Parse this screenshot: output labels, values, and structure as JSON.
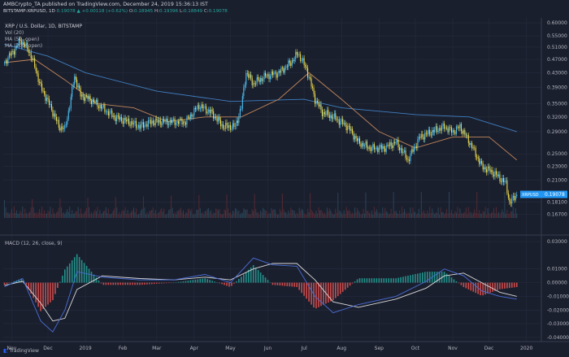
{
  "header": {
    "publisher_line": "AMBCrypto_TA published on TradingView.com, December 24, 2019 15:36:13 IST",
    "ticker_line": [
      "BITSTAMP:XRPUSD, 1D",
      "0.19078",
      "▲ +0.00118 (+0.62%)",
      "O:",
      "0.18945",
      "H:",
      "0.19396",
      "L:",
      "0.18849",
      "C:",
      "0.19078"
    ]
  },
  "legend": {
    "title": "XRP / U.S. Dollar, 1D, BITSTAMP",
    "vol": "Vol (20)",
    "ma50": "MA (50, open)",
    "ma200": "MA (200, open)",
    "macd": "MACD (12, 26, close, 9)"
  },
  "price_badge": "XRPUSD   0.19078",
  "footer": {
    "brand": "TradingView"
  },
  "colors": {
    "background": "#1a1f2e",
    "candle_up": "#4fc3f7",
    "candle_down": "#f4e04d",
    "ma50": "#c0865a",
    "ma200": "#3f7fbf",
    "macd_line": "#4a6ed8",
    "signal_line": "#d9d9d9",
    "hist_pos": "#26a69a",
    "hist_neg": "#ef5350"
  },
  "chart_data": [
    {
      "type": "line",
      "title": "XRP / U.S. Dollar, 1D, BITSTAMP",
      "log_scale": true,
      "ylim": [
        0.163,
        0.62
      ],
      "xlim": [
        "2018-10-25",
        "2020-01-12"
      ],
      "x_ticks": [
        "Nov",
        "Dec",
        "2019",
        "Feb",
        "Mar",
        "Apr",
        "May",
        "Jun",
        "Jul",
        "Aug",
        "Sep",
        "Oct",
        "Nov",
        "Dec",
        "2020"
      ],
      "y_ticks": [
        "0.60000",
        "0.55000",
        "0.51000",
        "0.47000",
        "0.43000",
        "0.39000",
        "0.35000",
        "0.32000",
        "0.29000",
        "0.25000",
        "0.23000",
        "0.21000",
        "0.18100",
        "0.16700"
      ],
      "grid": true,
      "series": [
        {
          "name": "XRPUSD",
          "x": [
            "2018-10-26",
            "2018-11-05",
            "2018-11-08",
            "2018-11-15",
            "2018-11-20",
            "2018-11-25",
            "2018-12-01",
            "2018-12-10",
            "2018-12-15",
            "2018-12-19",
            "2018-12-23",
            "2018-12-28",
            "2019-01-05",
            "2019-01-15",
            "2019-01-25",
            "2019-02-05",
            "2019-02-15",
            "2019-02-25",
            "2019-03-05",
            "2019-03-15",
            "2019-03-25",
            "2019-04-05",
            "2019-04-15",
            "2019-04-25",
            "2019-05-05",
            "2019-05-10",
            "2019-05-14",
            "2019-05-20",
            "2019-05-30",
            "2019-06-10",
            "2019-06-20",
            "2019-06-26",
            "2019-07-03",
            "2019-07-10",
            "2019-07-16",
            "2019-07-25",
            "2019-08-06",
            "2019-08-15",
            "2019-08-25",
            "2019-09-05",
            "2019-09-15",
            "2019-09-25",
            "2019-10-05",
            "2019-10-15",
            "2019-10-25",
            "2019-11-01",
            "2019-11-07",
            "2019-11-15",
            "2019-11-25",
            "2019-12-05",
            "2019-12-15",
            "2019-12-18",
            "2019-12-24"
          ],
          "values": [
            0.46,
            0.51,
            0.535,
            0.5,
            0.45,
            0.39,
            0.355,
            0.3,
            0.295,
            0.345,
            0.42,
            0.37,
            0.36,
            0.34,
            0.32,
            0.31,
            0.3,
            0.31,
            0.31,
            0.31,
            0.31,
            0.345,
            0.33,
            0.3,
            0.3,
            0.34,
            0.43,
            0.4,
            0.42,
            0.43,
            0.46,
            0.49,
            0.44,
            0.36,
            0.33,
            0.32,
            0.3,
            0.27,
            0.26,
            0.26,
            0.27,
            0.24,
            0.28,
            0.29,
            0.3,
            0.29,
            0.3,
            0.27,
            0.23,
            0.22,
            0.205,
            0.18,
            0.19078
          ]
        },
        {
          "name": "MA (50, open)",
          "x": [
            "2018-10-26",
            "2018-11-20",
            "2018-12-15",
            "2019-01-10",
            "2019-02-10",
            "2019-03-10",
            "2019-04-10",
            "2019-05-10",
            "2019-06-10",
            "2019-07-05",
            "2019-08-01",
            "2019-09-01",
            "2019-10-01",
            "2019-11-01",
            "2019-12-01",
            "2019-12-24"
          ],
          "values": [
            0.46,
            0.47,
            0.41,
            0.35,
            0.34,
            0.31,
            0.32,
            0.32,
            0.36,
            0.43,
            0.36,
            0.29,
            0.26,
            0.28,
            0.28,
            0.24
          ]
        },
        {
          "name": "MA (200, open)",
          "x": [
            "2018-10-26",
            "2018-12-01",
            "2019-01-01",
            "2019-03-01",
            "2019-05-01",
            "2019-07-01",
            "2019-08-01",
            "2019-10-01",
            "2019-11-15",
            "2019-12-24"
          ],
          "values": [
            0.52,
            0.48,
            0.43,
            0.38,
            0.355,
            0.36,
            0.34,
            0.325,
            0.32,
            0.29
          ]
        }
      ]
    },
    {
      "type": "line",
      "title": "MACD (12, 26, close, 9)",
      "ylim": [
        -0.043,
        0.033
      ],
      "y_ticks": [
        "0.03000",
        "0.01000",
        "0.00000",
        "-0.01000",
        "-0.02000",
        "-0.03000",
        "-0.04000"
      ],
      "series": [
        {
          "name": "MACD",
          "x": [
            "2018-10-26",
            "2018-11-10",
            "2018-11-25",
            "2018-12-05",
            "2018-12-15",
            "2018-12-25",
            "2019-01-15",
            "2019-02-15",
            "2019-03-15",
            "2019-04-10",
            "2019-05-01",
            "2019-05-20",
            "2019-06-05",
            "2019-06-25",
            "2019-07-10",
            "2019-07-25",
            "2019-08-15",
            "2019-09-15",
            "2019-10-10",
            "2019-10-25",
            "2019-11-10",
            "2019-11-25",
            "2019-12-10",
            "2019-12-24"
          ],
          "values": [
            -0.003,
            0.003,
            -0.028,
            -0.036,
            -0.02,
            0.008,
            0.004,
            0.002,
            0.002,
            0.006,
            0.0,
            0.018,
            0.013,
            0.012,
            -0.01,
            -0.022,
            -0.016,
            -0.01,
            0.001,
            0.01,
            0.005,
            -0.006,
            -0.01,
            -0.012
          ]
        },
        {
          "name": "Signal",
          "x": [
            "2018-10-26",
            "2018-11-10",
            "2018-11-25",
            "2018-12-05",
            "2018-12-15",
            "2018-12-25",
            "2019-01-15",
            "2019-02-15",
            "2019-03-15",
            "2019-04-10",
            "2019-05-01",
            "2019-05-20",
            "2019-06-05",
            "2019-06-25",
            "2019-07-10",
            "2019-07-25",
            "2019-08-15",
            "2019-09-15",
            "2019-10-10",
            "2019-10-25",
            "2019-11-10",
            "2019-11-25",
            "2019-12-10",
            "2019-12-24"
          ],
          "values": [
            -0.002,
            0.001,
            -0.015,
            -0.028,
            -0.026,
            -0.005,
            0.005,
            0.003,
            0.002,
            0.004,
            0.002,
            0.01,
            0.014,
            0.014,
            0.002,
            -0.014,
            -0.018,
            -0.012,
            -0.004,
            0.005,
            0.007,
            0.0,
            -0.007,
            -0.01
          ]
        }
      ]
    }
  ]
}
